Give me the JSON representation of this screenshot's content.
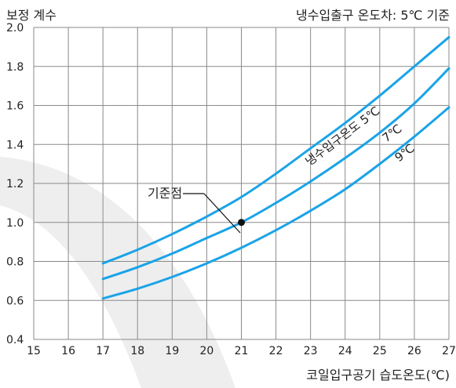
{
  "chart_data": {
    "type": "line",
    "title": "냉수입출구 온도차: 5℃ 기준",
    "ylabel": "보정 계수",
    "xlabel": "코일입구공기 습도온도(℃)",
    "xlim": [
      15,
      27
    ],
    "ylim": [
      0.4,
      2.0
    ],
    "x_ticks": [
      "15",
      "16",
      "17",
      "18",
      "19",
      "20",
      "21",
      "22",
      "23",
      "24",
      "25",
      "26",
      "27"
    ],
    "y_ticks": [
      "0.4",
      "0.6",
      "0.8",
      "1.0",
      "1.2",
      "1.4",
      "1.6",
      "1.8",
      "2.0"
    ],
    "grid": true,
    "series": [
      {
        "name": "냉수입구온도 5℃",
        "color": "#1aa3e8",
        "x": [
          17,
          18,
          19,
          20,
          21,
          22,
          23,
          24,
          25,
          26,
          27
        ],
        "y": [
          0.79,
          0.86,
          0.94,
          1.03,
          1.13,
          1.25,
          1.38,
          1.51,
          1.65,
          1.8,
          1.95
        ]
      },
      {
        "name": "7℃",
        "color": "#1aa3e8",
        "x": [
          17,
          18,
          19,
          20,
          21,
          22,
          23,
          24,
          25,
          26,
          27
        ],
        "y": [
          0.71,
          0.77,
          0.84,
          0.92,
          1.0,
          1.1,
          1.21,
          1.33,
          1.46,
          1.61,
          1.79
        ]
      },
      {
        "name": "9℃",
        "color": "#1aa3e8",
        "x": [
          17,
          18,
          19,
          20,
          21,
          22,
          23,
          24,
          25,
          26,
          27
        ],
        "y": [
          0.61,
          0.66,
          0.72,
          0.79,
          0.87,
          0.96,
          1.06,
          1.17,
          1.3,
          1.44,
          1.59
        ]
      }
    ],
    "reference_point": {
      "label": "기준점",
      "x": 21,
      "y": 1.0,
      "color": "#111111"
    }
  }
}
